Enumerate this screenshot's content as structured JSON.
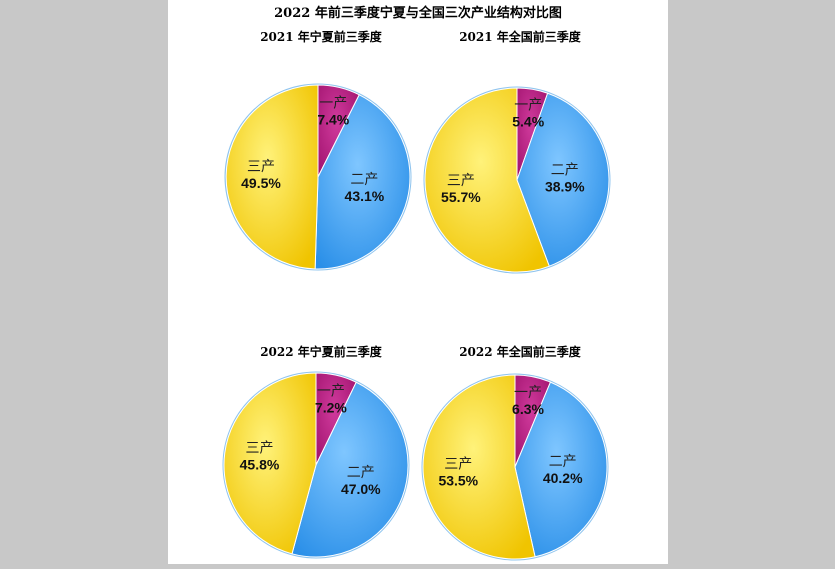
{
  "title": "2022 年前三季度宁夏与全国三次产业结构对比图",
  "colors": {
    "primary": "#a0136e",
    "secondary": "#2a8fe8",
    "tertiary": "#f0c400",
    "border": "#8fc4ee"
  },
  "chart_data": [
    {
      "type": "pie",
      "title": "2021 年宁夏前三季度",
      "categories": [
        "一产",
        "二产",
        "三产"
      ],
      "values": [
        7.4,
        43.1,
        49.5
      ],
      "labels": [
        "7.4%",
        "43.1%",
        "49.5%"
      ]
    },
    {
      "type": "pie",
      "title": "2021 年全国前三季度",
      "categories": [
        "一产",
        "二产",
        "三产"
      ],
      "values": [
        5.4,
        38.9,
        55.7
      ],
      "labels": [
        "5.4%",
        "38.9%",
        "55.7%"
      ]
    },
    {
      "type": "pie",
      "title": "2022 年宁夏前三季度",
      "categories": [
        "一产",
        "二产",
        "三产"
      ],
      "values": [
        7.2,
        47.0,
        45.8
      ],
      "labels": [
        "7.2%",
        "47.0%",
        "45.8%"
      ]
    },
    {
      "type": "pie",
      "title": "2022 年全国前三季度",
      "categories": [
        "一产",
        "二产",
        "三产"
      ],
      "values": [
        6.3,
        40.2,
        53.5
      ],
      "labels": [
        "6.3%",
        "40.2%",
        "53.5%"
      ]
    }
  ]
}
